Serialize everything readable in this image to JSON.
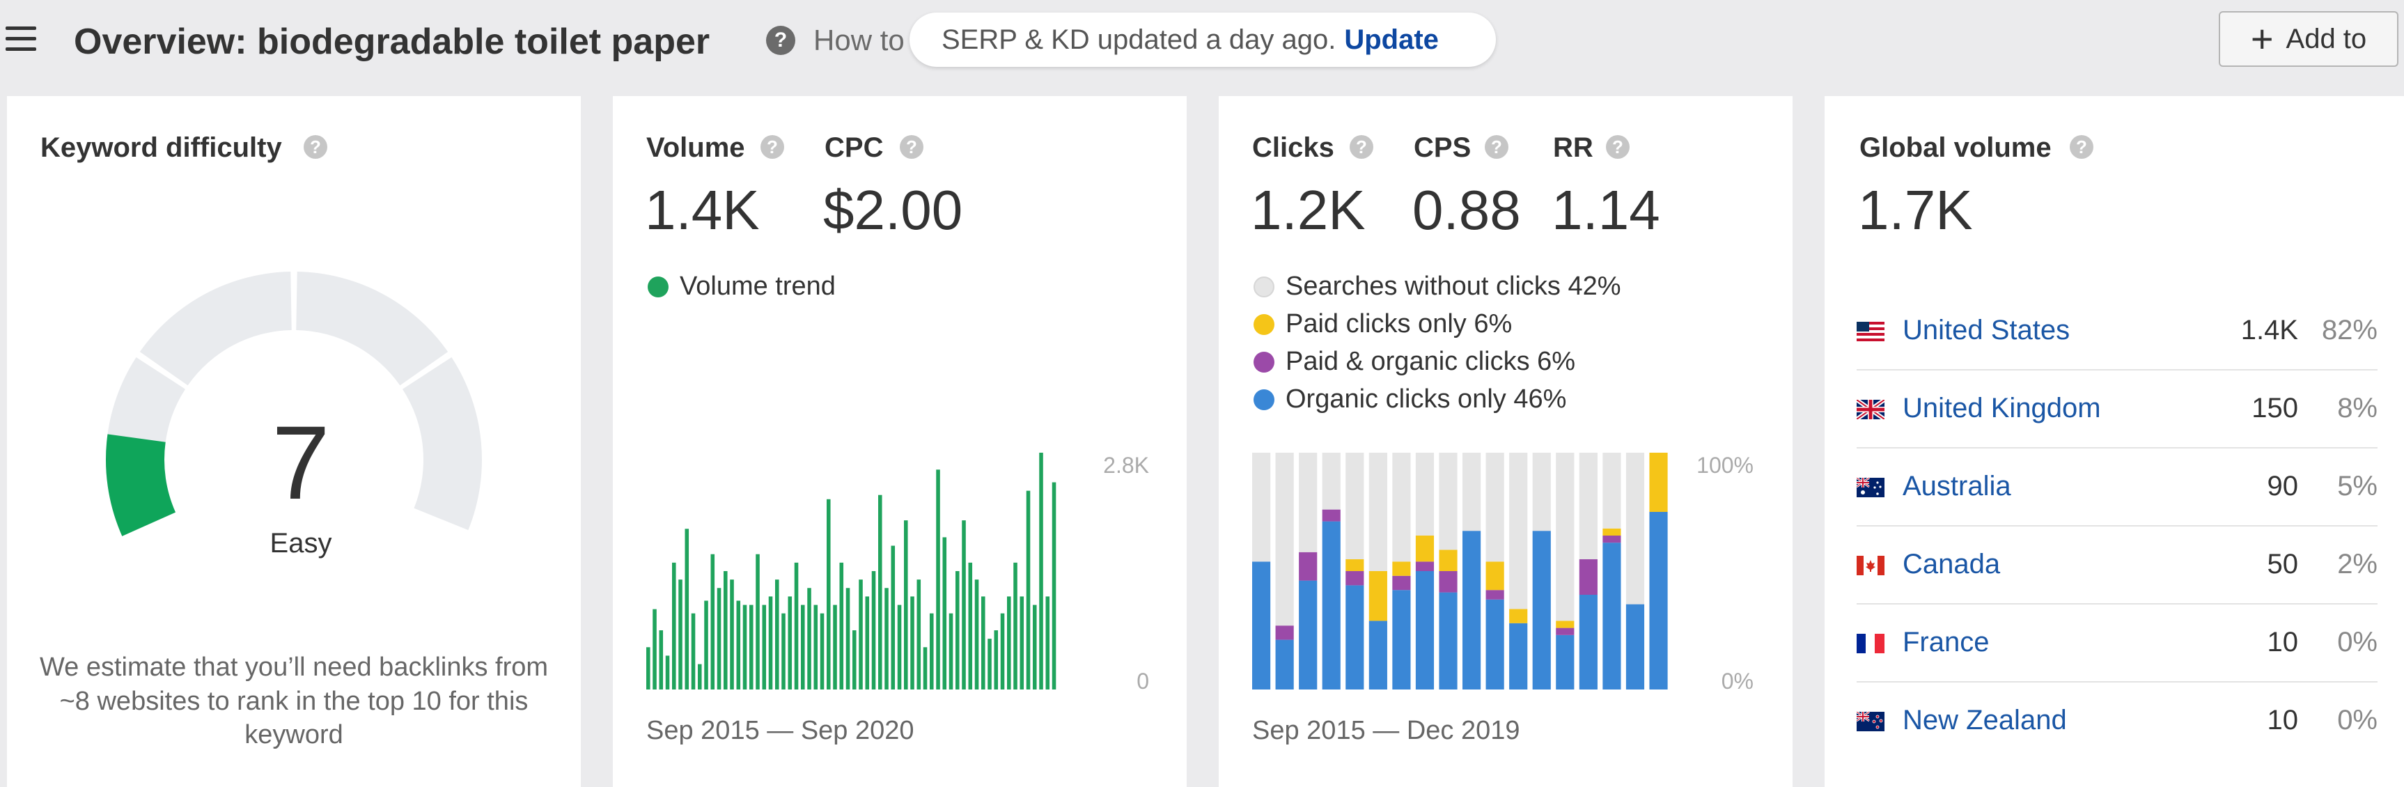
{
  "header": {
    "title": "Overview: biodegradable toilet paper",
    "help_glyph": "?",
    "how_to": "How to",
    "update_notice": "SERP & KD updated a day ago.",
    "update_link": "Update",
    "add_button": "Add to",
    "add_icon": "+"
  },
  "kd_card": {
    "label": "Keyword difficulty",
    "value": "7",
    "rating": "Easy",
    "score": 7,
    "description": "We estimate that you’ll need backlinks from ~8 websites to rank in the top 10 for this keyword",
    "accent_color": "#0fa55a"
  },
  "volume_card": {
    "volume_label": "Volume",
    "volume_value": "1.4K",
    "cpc_label": "CPC",
    "cpc_value": "$2.00",
    "legend": "Volume trend",
    "legend_color": "#1fa35c",
    "date_range": "Sep 2015 — Sep 2020"
  },
  "clicks_card": {
    "clicks_label": "Clicks",
    "clicks_value": "1.2K",
    "cps_label": "CPS",
    "cps_value": "0.88",
    "rr_label": "RR",
    "rr_value": "1.14",
    "legend": [
      {
        "label": "Searches without clicks 42%",
        "color": "#e5e5e5"
      },
      {
        "label": "Paid clicks only 6%",
        "color": "#f5c518"
      },
      {
        "label": "Paid & organic clicks 6%",
        "color": "#9b4aa8"
      },
      {
        "label": "Organic clicks only 46%",
        "color": "#3a87d6"
      }
    ],
    "date_range": "Sep 2015 — Dec 2019"
  },
  "global_card": {
    "label": "Global volume",
    "value": "1.7K",
    "countries": [
      {
        "name": "United States",
        "volume": "1.4K",
        "pct": "82%",
        "flag": "us-flag-icon"
      },
      {
        "name": "United Kingdom",
        "volume": "150",
        "pct": "8%",
        "flag": "uk-flag-icon"
      },
      {
        "name": "Australia",
        "volume": "90",
        "pct": "5%",
        "flag": "au-flag-icon"
      },
      {
        "name": "Canada",
        "volume": "50",
        "pct": "2%",
        "flag": "ca-flag-icon"
      },
      {
        "name": "France",
        "volume": "10",
        "pct": "0%",
        "flag": "fr-flag-icon"
      },
      {
        "name": "New Zealand",
        "volume": "10",
        "pct": "0%",
        "flag": "nz-flag-icon"
      }
    ]
  },
  "chart_data": [
    {
      "type": "bar",
      "title": "",
      "x_start": "Sep 2015",
      "x_end": "Sep 2020",
      "ylim": [
        0,
        2800
      ],
      "y_ticks": [
        "2.8K",
        "0"
      ],
      "color": "#1fa35c",
      "values": [
        500,
        950,
        700,
        400,
        1500,
        1300,
        1900,
        900,
        300,
        1050,
        1600,
        1200,
        1400,
        1300,
        1050,
        1000,
        1000,
        1600,
        1000,
        1100,
        1300,
        900,
        1100,
        1500,
        1000,
        1200,
        1000,
        900,
        2250,
        1000,
        1500,
        1200,
        700,
        1300,
        1100,
        1400,
        2300,
        1200,
        1700,
        1000,
        2000,
        1100,
        1300,
        500,
        900,
        2600,
        1800,
        900,
        1400,
        2000,
        1500,
        1300,
        1100,
        600,
        700,
        900,
        1100,
        1500,
        1100,
        2350,
        1000,
        2800,
        1100,
        2450
      ]
    },
    {
      "type": "bar",
      "stacked": true,
      "x_start": "Sep 2015",
      "x_end": "Dec 2019",
      "ylim": [
        0,
        100
      ],
      "y_ticks": [
        "100%",
        "0%"
      ],
      "series_order": [
        "organic",
        "paid_organic",
        "paid",
        "no_clicks"
      ],
      "colors": {
        "no_clicks": "#e5e5e5",
        "paid": "#f5c518",
        "paid_organic": "#9b4aa8",
        "organic": "#3a87d6"
      },
      "bars": [
        {
          "organic": 54,
          "paid_organic": 0,
          "paid": 0,
          "no_clicks": 46
        },
        {
          "organic": 21,
          "paid_organic": 6,
          "paid": 0,
          "no_clicks": 73
        },
        {
          "organic": 46,
          "paid_organic": 12,
          "paid": 0,
          "no_clicks": 42
        },
        {
          "organic": 71,
          "paid_organic": 5,
          "paid": 0,
          "no_clicks": 24
        },
        {
          "organic": 44,
          "paid_organic": 6,
          "paid": 5,
          "no_clicks": 45
        },
        {
          "organic": 29,
          "paid_organic": 0,
          "paid": 21,
          "no_clicks": 50
        },
        {
          "organic": 42,
          "paid_organic": 6,
          "paid": 6,
          "no_clicks": 46
        },
        {
          "organic": 50,
          "paid_organic": 4,
          "paid": 11,
          "no_clicks": 35
        },
        {
          "organic": 41,
          "paid_organic": 9,
          "paid": 9,
          "no_clicks": 41
        },
        {
          "organic": 67,
          "paid_organic": 0,
          "paid": 0,
          "no_clicks": 33
        },
        {
          "organic": 38,
          "paid_organic": 4,
          "paid": 12,
          "no_clicks": 46
        },
        {
          "organic": 28,
          "paid_organic": 0,
          "paid": 6,
          "no_clicks": 66
        },
        {
          "organic": 67,
          "paid_organic": 0,
          "paid": 0,
          "no_clicks": 33
        },
        {
          "organic": 23,
          "paid_organic": 3,
          "paid": 3,
          "no_clicks": 71
        },
        {
          "organic": 40,
          "paid_organic": 15,
          "paid": 0,
          "no_clicks": 45
        },
        {
          "organic": 62,
          "paid_organic": 3,
          "paid": 3,
          "no_clicks": 32
        },
        {
          "organic": 36,
          "paid_organic": 0,
          "paid": 0,
          "no_clicks": 64
        },
        {
          "organic": 75,
          "paid_organic": 0,
          "paid": 25,
          "no_clicks": 0
        }
      ]
    }
  ]
}
